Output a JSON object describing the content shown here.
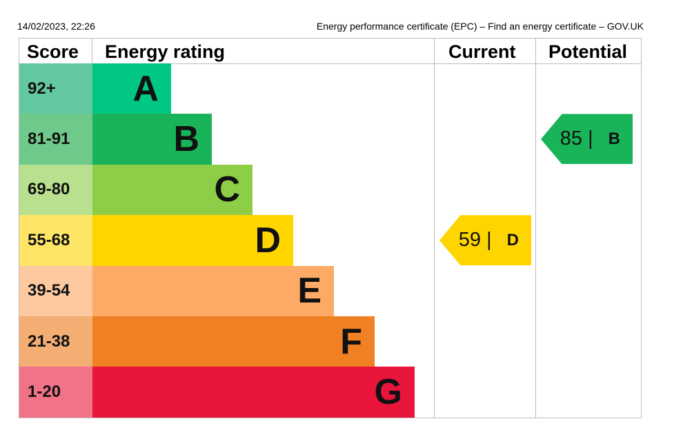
{
  "header": {
    "datetime": "14/02/2023, 22:26",
    "page_title": "Energy performance certificate (EPC) – Find an energy certificate – GOV.UK"
  },
  "chart_data": {
    "type": "bar",
    "columns": [
      "Score",
      "Energy rating",
      "Current",
      "Potential"
    ],
    "bands": [
      {
        "letter": "A",
        "range": "92+",
        "color": "#00c781",
        "score_color": "#63c7a1"
      },
      {
        "letter": "B",
        "range": "81-91",
        "color": "#19b459",
        "score_color": "#6fc98b"
      },
      {
        "letter": "C",
        "range": "69-80",
        "color": "#8dce46",
        "score_color": "#b8e08e"
      },
      {
        "letter": "D",
        "range": "55-68",
        "color": "#ffd500",
        "score_color": "#ffe566"
      },
      {
        "letter": "E",
        "range": "39-54",
        "color": "#fcaa65",
        "score_color": "#fdc9a0"
      },
      {
        "letter": "F",
        "range": "21-38",
        "color": "#ef8023",
        "score_color": "#f4ad73"
      },
      {
        "letter": "G",
        "range": "1-20",
        "color": "#e9153b",
        "score_color": "#f27388"
      }
    ],
    "current": {
      "score": "59",
      "letter": "D",
      "color": "#ffd500"
    },
    "potential": {
      "score": "85",
      "letter": "B",
      "color": "#19b459"
    }
  }
}
